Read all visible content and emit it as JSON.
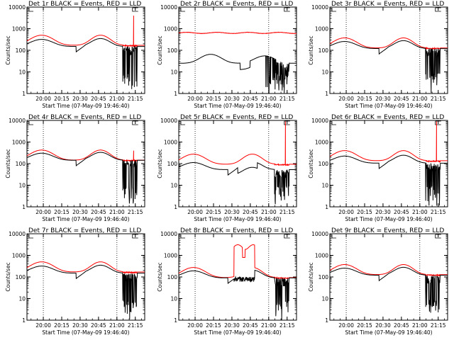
{
  "figure": {
    "x_tick_labels": [
      "20:00",
      "20:15",
      "20:30",
      "20:45",
      "21:00",
      "21:15"
    ],
    "x_label": "Start Time (07-May-09 19:46:40)",
    "y_label": "Counts/sec",
    "y_tick_labels": [
      "1",
      "10",
      "100",
      "1000",
      "10000"
    ],
    "colors": {
      "events": "#000000",
      "lld": "#ff0000",
      "axes": "#000000"
    }
  },
  "chart_data": [
    {
      "type": "line",
      "title": "Det 1r BLACK = Events, RED = LLD",
      "profile": "normal",
      "events_scale": 1.0,
      "lld_scale": 1.0,
      "spike": 4000,
      "x": "minutes from 19:46:40",
      "xlim": [
        0,
        96
      ],
      "ylim": [
        1,
        10000
      ],
      "yscale": "log",
      "events_range": [
        2,
        330
      ],
      "lld_range": [
        150,
        520
      ],
      "series": [
        {
          "name": "Events"
        },
        {
          "name": "LLD"
        }
      ]
    },
    {
      "type": "line",
      "title": "Det 2r BLACK = Events, RED = LLD",
      "profile": "det2",
      "events_scale": 1.0,
      "lld_scale": 1.0,
      "spike": null,
      "x": "minutes from 19:46:40",
      "xlim": [
        0,
        96
      ],
      "ylim": [
        1,
        10000
      ],
      "yscale": "log",
      "events_range": [
        1,
        70
      ],
      "lld_range": [
        600,
        700
      ],
      "series": [
        {
          "name": "Events"
        },
        {
          "name": "LLD"
        }
      ]
    },
    {
      "type": "line",
      "title": "Det 3r BLACK = Events, RED = LLD",
      "profile": "normal",
      "events_scale": 0.8,
      "lld_scale": 0.75,
      "spike": null,
      "x": "minutes from 19:46:40",
      "xlim": [
        0,
        96
      ],
      "ylim": [
        1,
        10000
      ],
      "yscale": "log",
      "events_range": [
        2,
        250
      ],
      "lld_range": [
        130,
        400
      ],
      "series": [
        {
          "name": "Events"
        },
        {
          "name": "LLD"
        }
      ]
    },
    {
      "type": "line",
      "title": "Det 4r BLACK = Events, RED = LLD",
      "profile": "normal",
      "events_scale": 0.95,
      "lld_scale": 0.85,
      "spike": 400,
      "x": "minutes from 19:46:40",
      "xlim": [
        0,
        96
      ],
      "ylim": [
        1,
        10000
      ],
      "yscale": "log",
      "events_range": [
        2,
        300
      ],
      "lld_range": [
        150,
        450
      ],
      "series": [
        {
          "name": "Events"
        },
        {
          "name": "LLD"
        }
      ]
    },
    {
      "type": "line",
      "title": "Det 5r BLACK = Events, RED = LLD",
      "profile": "det5",
      "events_scale": 0.35,
      "lld_scale": 0.55,
      "spike": 9000,
      "x": "minutes from 19:46:40",
      "xlim": [
        0,
        96
      ],
      "ylim": [
        1,
        10000
      ],
      "yscale": "log",
      "events_range": [
        2,
        100
      ],
      "lld_range": [
        100,
        260
      ],
      "series": [
        {
          "name": "Events"
        },
        {
          "name": "LLD"
        }
      ]
    },
    {
      "type": "line",
      "title": "Det 6r BLACK = Events, RED = LLD",
      "profile": "normal",
      "events_scale": 0.7,
      "lld_scale": 0.8,
      "spike": 9000,
      "x": "minutes from 19:46:40",
      "xlim": [
        0,
        96
      ],
      "ylim": [
        1,
        10000
      ],
      "yscale": "log",
      "events_range": [
        2,
        200
      ],
      "lld_range": [
        100,
        420
      ],
      "series": [
        {
          "name": "Events"
        },
        {
          "name": "LLD"
        }
      ]
    },
    {
      "type": "line",
      "title": "Det 7r BLACK = Events, RED = LLD",
      "profile": "normal",
      "events_scale": 1.0,
      "lld_scale": 1.0,
      "spike": null,
      "x": "minutes from 19:46:40",
      "xlim": [
        0,
        96
      ],
      "ylim": [
        1,
        10000
      ],
      "yscale": "log",
      "events_range": [
        2,
        330
      ],
      "lld_range": [
        180,
        520
      ],
      "series": [
        {
          "name": "Events"
        },
        {
          "name": "LLD"
        }
      ]
    },
    {
      "type": "line",
      "title": "Det 8r BLACK = Events, RED = LLD",
      "profile": "det8",
      "events_scale": 0.6,
      "lld_scale": 1.4,
      "spike": null,
      "x": "minutes from 19:46:40",
      "xlim": [
        0,
        96
      ],
      "ylim": [
        1,
        10000
      ],
      "yscale": "log",
      "events_range": [
        2,
        180
      ],
      "lld_range": [
        150,
        3500
      ],
      "series": [
        {
          "name": "Events"
        },
        {
          "name": "LLD"
        }
      ]
    },
    {
      "type": "line",
      "title": "Det 9r BLACK = Events, RED = LLD",
      "profile": "normal",
      "events_scale": 0.8,
      "lld_scale": 0.75,
      "spike": null,
      "x": "minutes from 19:46:40",
      "xlim": [
        0,
        96
      ],
      "ylim": [
        1,
        10000
      ],
      "yscale": "log",
      "events_range": [
        2,
        250
      ],
      "lld_range": [
        130,
        400
      ],
      "series": [
        {
          "name": "Events"
        },
        {
          "name": "LLD"
        }
      ]
    }
  ]
}
